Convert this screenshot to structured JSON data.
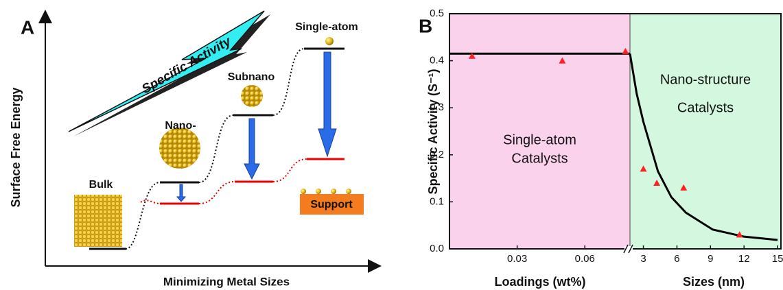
{
  "panel_a": {
    "panel_label": "A",
    "y_axis_label": "Surface Free Energy",
    "x_axis_label": "Minimizing Metal Sizes",
    "trend_label": "Specific Activity",
    "stages": [
      "Bulk",
      "Nano-",
      "Subnano",
      "Single-atom"
    ],
    "support_label": "Support"
  },
  "chart_data": {
    "type": "scatter",
    "panel_label": "B",
    "ylabel": "Specific Activity (S⁻¹)",
    "ylim": [
      0,
      0.5
    ],
    "yticks": [
      {
        "value": 0,
        "label": "0.0"
      },
      0.1,
      0.2,
      0.3,
      0.4,
      0.5
    ],
    "point_color": "#ff2020",
    "fit_color": "#000000",
    "segments": [
      {
        "xlabel": "Loadings (wt%)",
        "xlim": [
          0,
          0.08
        ],
        "xticks": [
          0.03,
          0.06
        ],
        "background": "#fad2ec",
        "region_label": [
          "Single-atom",
          "Catalysts"
        ],
        "points": {
          "x": [
            0.01,
            0.05,
            0.078
          ],
          "values": [
            0.41,
            0.4,
            0.42
          ]
        },
        "fit": {
          "x": [
            0,
            0.08
          ],
          "values": [
            0.415,
            0.415
          ]
        }
      },
      {
        "xlabel": "Sizes (nm)",
        "xlim": [
          1.8,
          15.3
        ],
        "xticks": [
          3,
          6,
          9,
          12,
          15
        ],
        "background": "#d4f7e0",
        "region_label": [
          "Nano-structure",
          "Catalysts"
        ],
        "points": {
          "x": [
            3,
            4.2,
            6.6,
            11.6
          ],
          "values": [
            0.17,
            0.14,
            0.13,
            0.03
          ]
        },
        "fit": {
          "x": [
            1.8,
            2.4,
            3,
            4.3,
            5.5,
            6.8,
            9.2,
            12,
            15
          ],
          "values": [
            0.415,
            0.33,
            0.27,
            0.165,
            0.11,
            0.077,
            0.041,
            0.026,
            0.019
          ]
        }
      }
    ]
  }
}
